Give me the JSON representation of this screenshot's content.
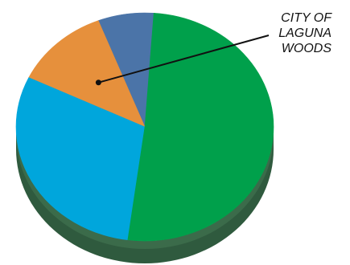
{
  "chart_data": {
    "type": "pie",
    "style": "3d",
    "start_angle_deg": 86,
    "direction": "counterclockwise",
    "slices": [
      {
        "value": 7,
        "color": "#4b74a8"
      },
      {
        "value": 12,
        "color": "#e6903c"
      },
      {
        "value": 30,
        "color": "#00a6dc"
      },
      {
        "value": 51,
        "color": "#00a04b"
      }
    ],
    "annotations": [
      {
        "slice_index": 1,
        "lines": [
          "CITY OF",
          "LAGUNA",
          "WOODS"
        ]
      }
    ]
  }
}
